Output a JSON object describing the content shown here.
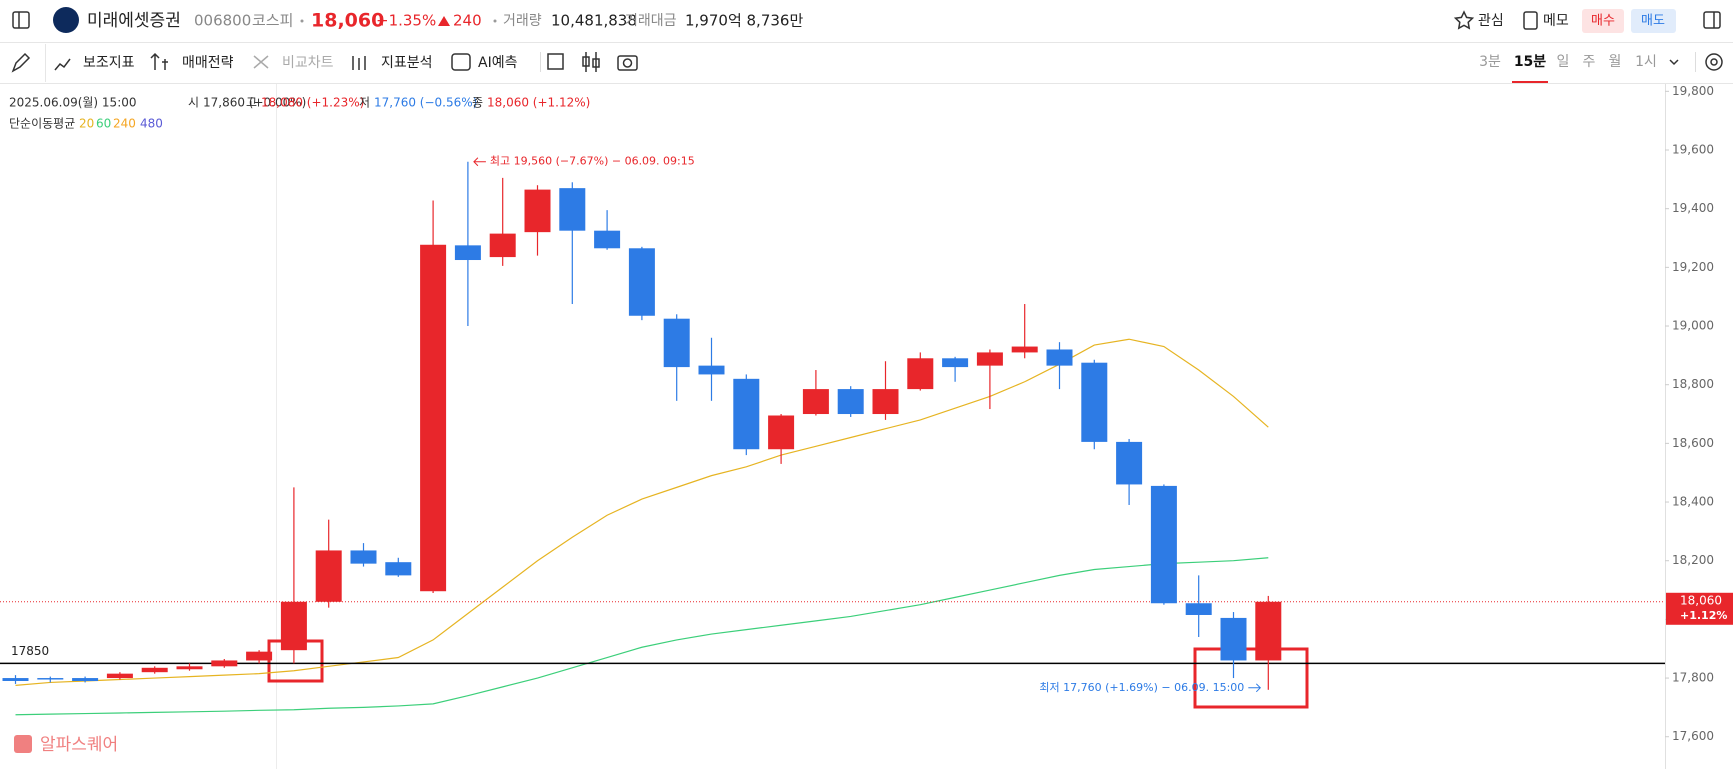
{
  "header": {
    "name": "미래에셋증권",
    "code": "006800",
    "market": "코스피",
    "price": "18,060",
    "change_pct": "+1.35%",
    "change": "240",
    "volume_label": "거래량",
    "volume": "10,481,838",
    "amount_label": "거래대금",
    "amount": "1,970억 8,736만",
    "watch": "관심",
    "memo": "메모",
    "buy": "매수",
    "sell": "매도"
  },
  "toolbar": {
    "tools": [
      "보조지표",
      "매매전략",
      "비교차트",
      "지표분석",
      "AI예측"
    ],
    "intervals": [
      "3분",
      "15분",
      "일",
      "주",
      "월",
      "1시"
    ]
  },
  "chart_data": {
    "type": "candlestick",
    "date": "2025.06.09(월) 15:00",
    "info": [
      {
        "label": "시",
        "value": "17,860 (+0.00%)",
        "color": "#333333"
      },
      {
        "label": "고",
        "value": "18,080 (+1.23%)",
        "color": "#e8262b"
      },
      {
        "label": "저",
        "value": "17,760 (−0.56%)",
        "color": "#2d7be5"
      },
      {
        "label": "종",
        "value": "18,060 (+1.12%)",
        "color": "#e8262b"
      }
    ],
    "up_color": "#e8262b",
    "down_color": "#2d7be5",
    "open": [
      17800,
      17800,
      17800,
      17800,
      17820,
      17830,
      17840,
      17860,
      17895,
      18060,
      18235,
      18195,
      18096,
      19275,
      19235,
      19320,
      19470,
      19325,
      19265,
      19025,
      18865,
      18820,
      18580,
      18700,
      18785,
      18700,
      18785,
      18890,
      18865,
      18910,
      18920,
      18875,
      18605,
      18455,
      18055,
      18005,
      17860
    ],
    "high": [
      17810,
      17805,
      17805,
      17820,
      17840,
      17850,
      17865,
      17895,
      18450,
      18340,
      18260,
      18210,
      19428,
      19560,
      19505,
      19480,
      19490,
      19395,
      19270,
      19040,
      18960,
      18835,
      18700,
      18850,
      18795,
      18880,
      18910,
      18895,
      18920,
      19075,
      18945,
      18885,
      18615,
      18460,
      18150,
      18025,
      18080
    ],
    "low": [
      17780,
      17785,
      17785,
      17795,
      17815,
      17825,
      17835,
      17850,
      17850,
      18040,
      18180,
      18145,
      18090,
      19000,
      19205,
      19240,
      19075,
      19260,
      19020,
      18745,
      18745,
      18560,
      18530,
      18695,
      18690,
      18680,
      18780,
      18810,
      18717,
      18890,
      18785,
      18580,
      18390,
      18050,
      17940,
      17800,
      17760
    ],
    "close": [
      17790,
      17795,
      17790,
      17815,
      17835,
      17840,
      17860,
      17890,
      18060,
      18235,
      18190,
      18150,
      19277,
      19225,
      19315,
      19465,
      19325,
      19265,
      19035,
      18860,
      18835,
      18580,
      18695,
      18785,
      18700,
      18785,
      18890,
      18860,
      18910,
      18930,
      18865,
      18605,
      18460,
      18055,
      18015,
      17860,
      18060
    ],
    "moving_averages": {
      "label": "단순이동평균",
      "series": [
        {
          "name": "20",
          "color": "#e6b422",
          "values": [
            17775,
            17785,
            17790,
            17795,
            17800,
            17805,
            17810,
            17815,
            17825,
            17840,
            17855,
            17870,
            17930,
            18020,
            18110,
            18200,
            18280,
            18355,
            18410,
            18450,
            18490,
            18520,
            18560,
            18590,
            18620,
            18650,
            18680,
            18720,
            18760,
            18810,
            18870,
            18935,
            18955,
            18930,
            18850,
            18760,
            18655
          ]
        },
        {
          "name": "60",
          "color": "#3ccf7a",
          "values": [
            17675,
            17677,
            17679,
            17681,
            17683,
            17685,
            17687,
            17690,
            17692,
            17697,
            17700,
            17705,
            17712,
            17740,
            17770,
            17800,
            17835,
            17870,
            17905,
            17930,
            17950,
            17965,
            17980,
            17995,
            18010,
            18030,
            18050,
            18075,
            18100,
            18125,
            18150,
            18170,
            18180,
            18190,
            18195,
            18200,
            18210
          ]
        },
        {
          "name": "240",
          "color": "#f5a623"
        },
        {
          "name": "480",
          "color": "#5b5bd6"
        }
      ]
    },
    "ylim": [
      17490,
      19825
    ],
    "yticks": [
      {
        "value": 17600,
        "label": "17,600"
      },
      {
        "value": 17800,
        "label": "17,800"
      },
      {
        "value": 18000,
        "label": "18,000"
      },
      {
        "value": 18200,
        "label": "18,200"
      },
      {
        "value": 18400,
        "label": "18,400"
      },
      {
        "value": 18600,
        "label": "18,600"
      },
      {
        "value": 18800,
        "label": "18,800"
      },
      {
        "value": 19000,
        "label": "19,000"
      },
      {
        "value": 19200,
        "label": "19,200"
      },
      {
        "value": 19400,
        "label": "19,400"
      },
      {
        "value": 19600,
        "label": "19,600"
      },
      {
        "value": 19800,
        "label": "19,800"
      }
    ],
    "hline": {
      "value": 17850,
      "label": "17850",
      "color": "#000000"
    },
    "last_price": {
      "value": 18060,
      "label": "18,060",
      "change": "+1.12%",
      "color": "#e8262b"
    },
    "annotations": [
      {
        "value": 19560,
        "text": "최고 19,560 (−7.67%) − 06.09. 09:15",
        "color": "#e8262b"
      },
      {
        "value": 17760,
        "text": "최저 17,760 (+1.69%) − 06.09. 15:00",
        "color": "#2d7be5"
      }
    ],
    "watermark": "알파스퀘어"
  }
}
